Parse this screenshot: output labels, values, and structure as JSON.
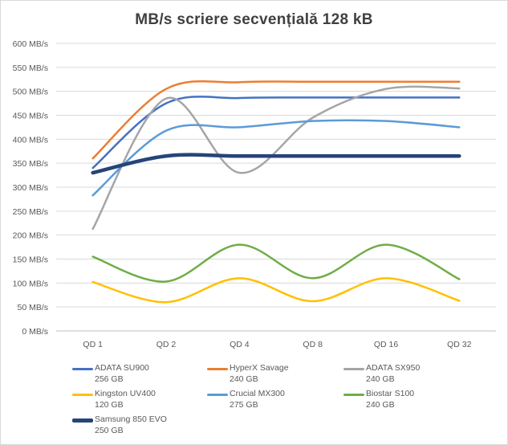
{
  "chart_data": {
    "type": "line",
    "title": "MB/s scriere secvențială  128 kB",
    "categories": [
      "QD 1",
      "QD 2",
      "QD 4",
      "QD 8",
      "QD 16",
      "QD 32"
    ],
    "ylim": [
      0,
      600
    ],
    "ytick_step": 50,
    "ytick_suffix": " MB/s",
    "grid": true,
    "legend_position": "bottom",
    "series": [
      {
        "name": "ADATA SU900",
        "capacity": "256 GB",
        "color": "#4472c4",
        "width": 2.5,
        "values": [
          340,
          475,
          486,
          487,
          487,
          487
        ]
      },
      {
        "name": "HyperX Savage",
        "capacity": "240 GB",
        "color": "#ed7d31",
        "width": 2.5,
        "values": [
          360,
          505,
          519,
          520,
          520,
          520
        ]
      },
      {
        "name": "ADATA SX950",
        "capacity": "240 GB",
        "color": "#a5a5a5",
        "width": 2.5,
        "values": [
          213,
          485,
          330,
          445,
          505,
          506
        ]
      },
      {
        "name": "Kingston UV400",
        "capacity": "120 GB",
        "color": "#ffc000",
        "width": 2.5,
        "values": [
          102,
          60,
          110,
          62,
          110,
          63
        ]
      },
      {
        "name": "Crucial MX300",
        "capacity": "275 GB",
        "color": "#5b9bd5",
        "width": 2.5,
        "values": [
          283,
          418,
          425,
          438,
          438,
          425
        ]
      },
      {
        "name": "Biostar S100",
        "capacity": "240 GB",
        "color": "#70ad47",
        "width": 2.5,
        "values": [
          155,
          103,
          180,
          110,
          180,
          108
        ]
      },
      {
        "name": "Samsung 850 EVO",
        "capacity": "250 GB",
        "color": "#264478",
        "width": 4.5,
        "values": [
          330,
          365,
          365,
          365,
          365,
          365
        ]
      }
    ]
  }
}
